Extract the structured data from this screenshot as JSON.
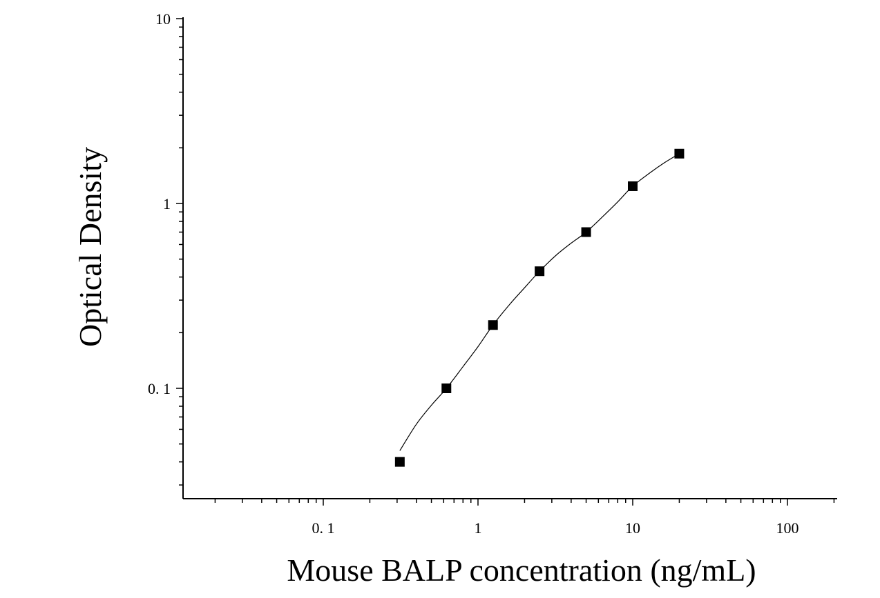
{
  "chart_data": {
    "type": "scatter",
    "title": "",
    "xlabel": "Mouse BALP concentration (ng/mL)",
    "ylabel": "Optical Density",
    "xscale": "log",
    "yscale": "log",
    "xlim": [
      0.0145,
      200
    ],
    "ylim": [
      0.027,
      10
    ],
    "x_tick_labels": [
      {
        "value": 0.1,
        "label": "0. 1"
      },
      {
        "value": 1,
        "label": "1"
      },
      {
        "value": 10,
        "label": "10"
      },
      {
        "value": 100,
        "label": "100"
      }
    ],
    "y_tick_labels": [
      {
        "value": 0.1,
        "label": "0. 1"
      },
      {
        "value": 1,
        "label": "1"
      },
      {
        "value": 10,
        "label": "10"
      }
    ],
    "grid": false,
    "legend": "none",
    "series": [
      {
        "marker": "square",
        "color": "#000000",
        "x": [
          0.3125,
          0.625,
          1.25,
          2.5,
          5,
          10,
          20
        ],
        "y": [
          0.04,
          0.1,
          0.22,
          0.43,
          0.7,
          1.24,
          1.86
        ]
      }
    ],
    "fit_curve": {
      "color": "#000000",
      "x": [
        0.3125,
        0.4,
        0.5,
        0.625,
        0.8,
        1.0,
        1.25,
        1.6,
        2.0,
        2.5,
        3.2,
        4.0,
        5.0,
        6.5,
        8.0,
        10,
        13,
        16,
        20
      ],
      "y": [
        0.046,
        0.064,
        0.081,
        0.1,
        0.131,
        0.168,
        0.22,
        0.284,
        0.35,
        0.43,
        0.525,
        0.61,
        0.7,
        0.86,
        1.02,
        1.24,
        1.47,
        1.66,
        1.86
      ]
    }
  }
}
